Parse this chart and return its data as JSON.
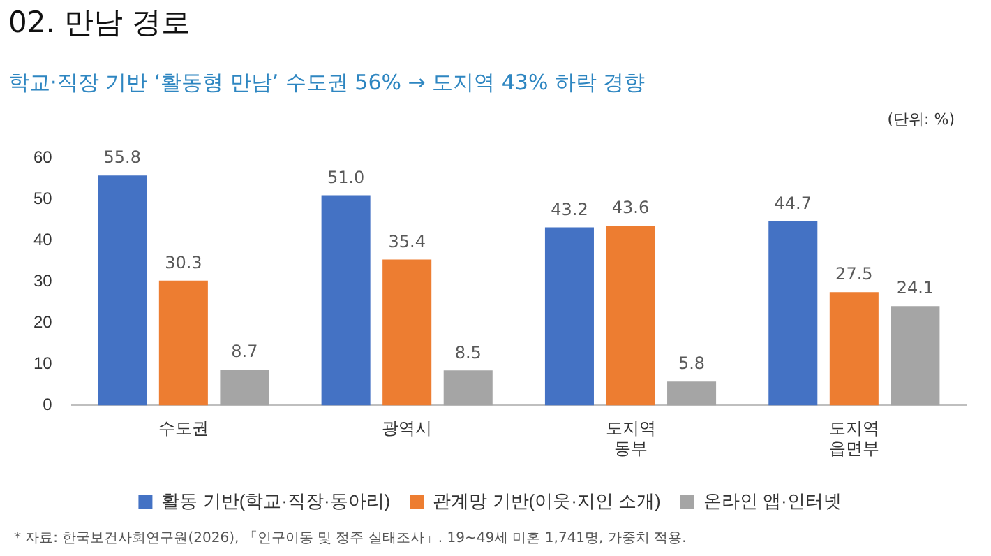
{
  "chart_data": {
    "type": "bar",
    "title": "02. 만남 경로",
    "subtitle": "학교·직장 기반 ‘활동형 만남’ 수도권 56% → 도지역 43% 하락 경향",
    "ylabel": "(단위: %)",
    "annotations": [
      "* 자료: 한국보건사회연구원(2026), 「인구이동 및 정주 실태조사」. 19~49세 미혼 1,741명, 가중치 적용."
    ],
    "categories": [
      "수도권",
      "광역시",
      "도지역 동부",
      "도지역 읍면부"
    ],
    "series": [
      {
        "name": "활동 기반(학교·직장·동아리)",
        "color": "#4472c4",
        "values": [
          55.8,
          51.0,
          43.2,
          44.7
        ],
        "value_labels": [
          "55.8",
          "51.0",
          "43.2",
          "44.7"
        ]
      },
      {
        "name": "관계망 기반(이웃·지인 소개)",
        "color": "#ed7d31",
        "values": [
          30.3,
          35.4,
          43.6,
          27.5
        ],
        "value_labels": [
          "30.3",
          "35.4",
          "43.6",
          "27.5"
        ]
      },
      {
        "name": "온라인 앱·인터넷",
        "color": "#a5a5a5",
        "values": [
          8.7,
          8.5,
          5.8,
          24.1
        ],
        "value_labels": [
          "8.7",
          "8.5",
          "5.8",
          "24.1"
        ]
      }
    ],
    "ylim": [
      0,
      60
    ],
    "yticks": [
      0,
      10,
      20,
      30,
      40,
      50,
      60
    ],
    "grid": false,
    "legend": "bottom"
  }
}
